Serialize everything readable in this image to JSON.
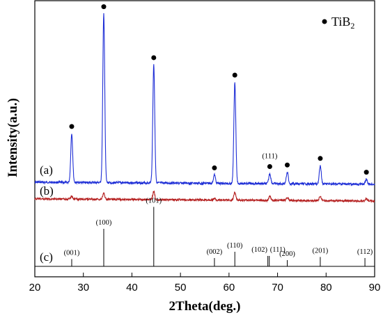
{
  "chart_data": {
    "type": "line",
    "title": "",
    "xlabel": "2Theta(deg.)",
    "ylabel": "Intensity(a.u.)",
    "xlim": [
      20,
      90
    ],
    "xticks": [
      "20",
      "30",
      "40",
      "50",
      "60",
      "70",
      "80",
      "90"
    ],
    "grid": false,
    "legend": {
      "marker": "filled-circle",
      "label": "TiB",
      "subscript": "2",
      "placement": "top-right"
    },
    "curve_labels": [
      "(a)",
      "(b)",
      "(c)"
    ],
    "series": [
      {
        "color": "#1f2fd6",
        "peaks": [
          {
            "x": 27.6,
            "h": 0.29
          },
          {
            "x": 34.2,
            "h": 1.0
          },
          {
            "x": 44.5,
            "h": 0.7
          },
          {
            "x": 57.0,
            "h": 0.05
          },
          {
            "x": 61.2,
            "h": 0.6
          },
          {
            "x": 68.4,
            "h": 0.06
          },
          {
            "x": 72.0,
            "h": 0.07
          },
          {
            "x": 78.8,
            "h": 0.11
          },
          {
            "x": 88.3,
            "h": 0.03
          }
        ]
      },
      {
        "color": "#b52020",
        "peaks": [
          {
            "x": 27.6,
            "h": 0.04
          },
          {
            "x": 34.2,
            "h": 0.08
          },
          {
            "x": 44.5,
            "h": 0.11
          },
          {
            "x": 57.0,
            "h": 0.02
          },
          {
            "x": 61.2,
            "h": 0.1
          },
          {
            "x": 68.4,
            "h": 0.05
          },
          {
            "x": 72.0,
            "h": 0.04
          },
          {
            "x": 78.8,
            "h": 0.06
          },
          {
            "x": 88.3,
            "h": 0.03
          }
        ]
      }
    ],
    "markers": [
      27.6,
      34.2,
      44.5,
      57.0,
      61.2,
      68.4,
      72.0,
      78.8,
      88.3
    ],
    "marker_annotation": {
      "x": 68.4,
      "label": "(111)"
    },
    "reference": [
      {
        "x": 27.6,
        "h": 0.07,
        "label": "(001)"
      },
      {
        "x": 34.2,
        "h": 0.36,
        "label": "(100)"
      },
      {
        "x": 44.5,
        "h": 0.57,
        "label": "(101)"
      },
      {
        "x": 57.0,
        "h": 0.08,
        "label": "(002)"
      },
      {
        "x": 61.2,
        "h": 0.14,
        "label": "(110)"
      },
      {
        "x": 68.0,
        "h": 0.1,
        "label": "(102)"
      },
      {
        "x": 68.3,
        "h": 0.1,
        "label": "(111)"
      },
      {
        "x": 72.0,
        "h": 0.06,
        "label": "(200)"
      },
      {
        "x": 78.8,
        "h": 0.09,
        "label": "(201)"
      },
      {
        "x": 88.0,
        "h": 0.08,
        "label": "(112)"
      }
    ]
  }
}
